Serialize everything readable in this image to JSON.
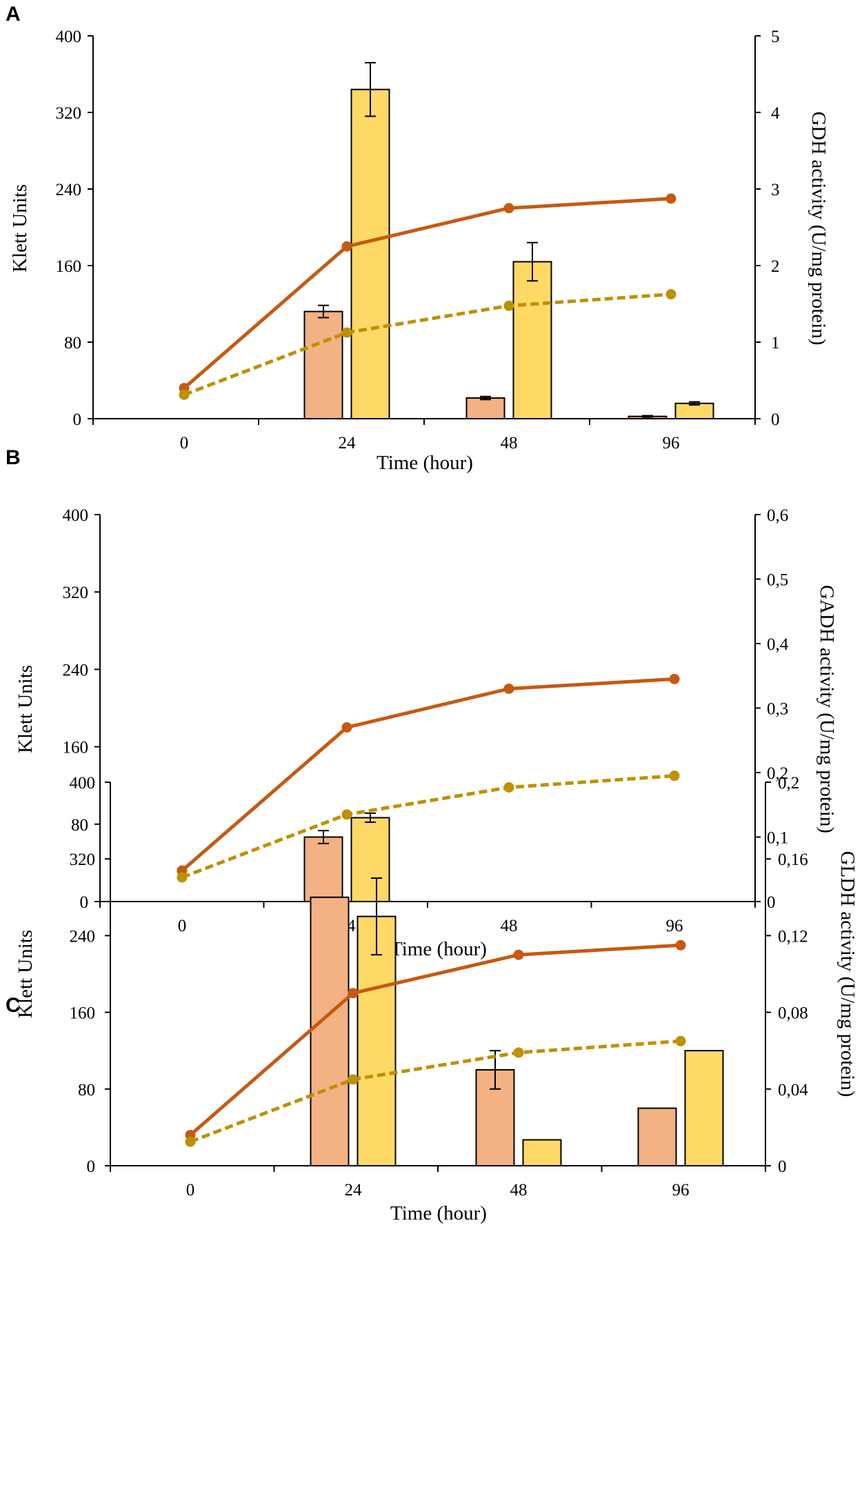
{
  "figure": {
    "panels": [
      "A",
      "B",
      "C"
    ]
  },
  "chart_data": [
    {
      "panel": "A",
      "type": "bar",
      "title": "",
      "xlabel": "Time (hour)",
      "ylabel": "Klett Units",
      "y2label": "GDH activity (U/mg protein)",
      "categories": [
        "0",
        "24",
        "48",
        "96"
      ],
      "ylim": [
        0,
        400
      ],
      "yticks": [
        "0",
        "80",
        "160",
        "240",
        "320",
        "400"
      ],
      "y2lim": [
        0,
        5
      ],
      "y2ticks": [
        "0",
        "1",
        "2",
        "3",
        "4",
        "5"
      ],
      "grid": false,
      "legend": "none",
      "bar_series": [
        {
          "color": "#F4B183",
          "values": [
            null,
            1.4,
            0.27,
            0.03
          ],
          "errors": [
            null,
            0.08,
            0.02,
            0.01
          ]
        },
        {
          "color": "#FFD966",
          "values": [
            null,
            4.3,
            2.05,
            0.2
          ],
          "errors": [
            null,
            0.35,
            0.25,
            0.02
          ]
        }
      ],
      "line_series": [
        {
          "color": "#C55A11",
          "style": "solid",
          "values": [
            32,
            180,
            220,
            230
          ]
        },
        {
          "color": "#BF9000",
          "style": "dashed",
          "values": [
            25,
            90,
            118,
            130
          ]
        }
      ]
    },
    {
      "panel": "B",
      "type": "bar",
      "title": "",
      "xlabel": "Time (hour)",
      "ylabel": "Klett Units",
      "y2label": "GADH activity (U/mg protein)",
      "categories": [
        "0",
        "24",
        "48",
        "96"
      ],
      "ylim": [
        0,
        400
      ],
      "yticks": [
        "0",
        "80",
        "160",
        "240",
        "320",
        "400"
      ],
      "y2lim": [
        0,
        0.6
      ],
      "y2ticks": [
        "0",
        "0,1",
        "0,2",
        "0,3",
        "0,4",
        "0,5",
        "0,6"
      ],
      "grid": false,
      "legend": "none",
      "bar_series": [
        {
          "color": "#F4B183",
          "values": [
            null,
            0.1,
            null,
            null
          ],
          "errors": [
            null,
            0.01,
            null,
            null
          ]
        },
        {
          "color": "#FFD966",
          "values": [
            null,
            0.13,
            null,
            null
          ],
          "errors": [
            null,
            0.007,
            null,
            null
          ]
        }
      ],
      "line_series": [
        {
          "color": "#C55A11",
          "style": "solid",
          "values": [
            32,
            180,
            220,
            230
          ]
        },
        {
          "color": "#BF9000",
          "style": "dashed",
          "values": [
            25,
            90,
            118,
            130
          ]
        }
      ]
    },
    {
      "panel": "C",
      "type": "bar",
      "title": "",
      "xlabel": "Time (hour)",
      "ylabel": "Klett Units",
      "y2label": "GLDH activity (U/mg protein)",
      "categories": [
        "0",
        "24",
        "48",
        "96"
      ],
      "ylim": [
        0,
        400
      ],
      "yticks": [
        "0",
        "80",
        "160",
        "240",
        "320",
        "400"
      ],
      "y2lim": [
        0,
        0.2
      ],
      "y2ticks": [
        "0",
        "0,04",
        "0,08",
        "0,12",
        "0,16",
        "0,2"
      ],
      "grid": false,
      "legend": "none",
      "bar_series": [
        {
          "color": "#F4B183",
          "values": [
            null,
            0.14,
            0.05,
            0.03
          ],
          "errors": [
            null,
            null,
            0.01,
            null
          ]
        },
        {
          "color": "#FFD966",
          "values": [
            null,
            0.13,
            0.0135,
            0.06
          ],
          "errors": [
            null,
            0.02,
            null,
            null
          ]
        }
      ],
      "line_series": [
        {
          "color": "#C55A11",
          "style": "solid",
          "values": [
            32,
            180,
            220,
            230
          ]
        },
        {
          "color": "#BF9000",
          "style": "dashed",
          "values": [
            25,
            90,
            118,
            130
          ]
        }
      ]
    }
  ]
}
